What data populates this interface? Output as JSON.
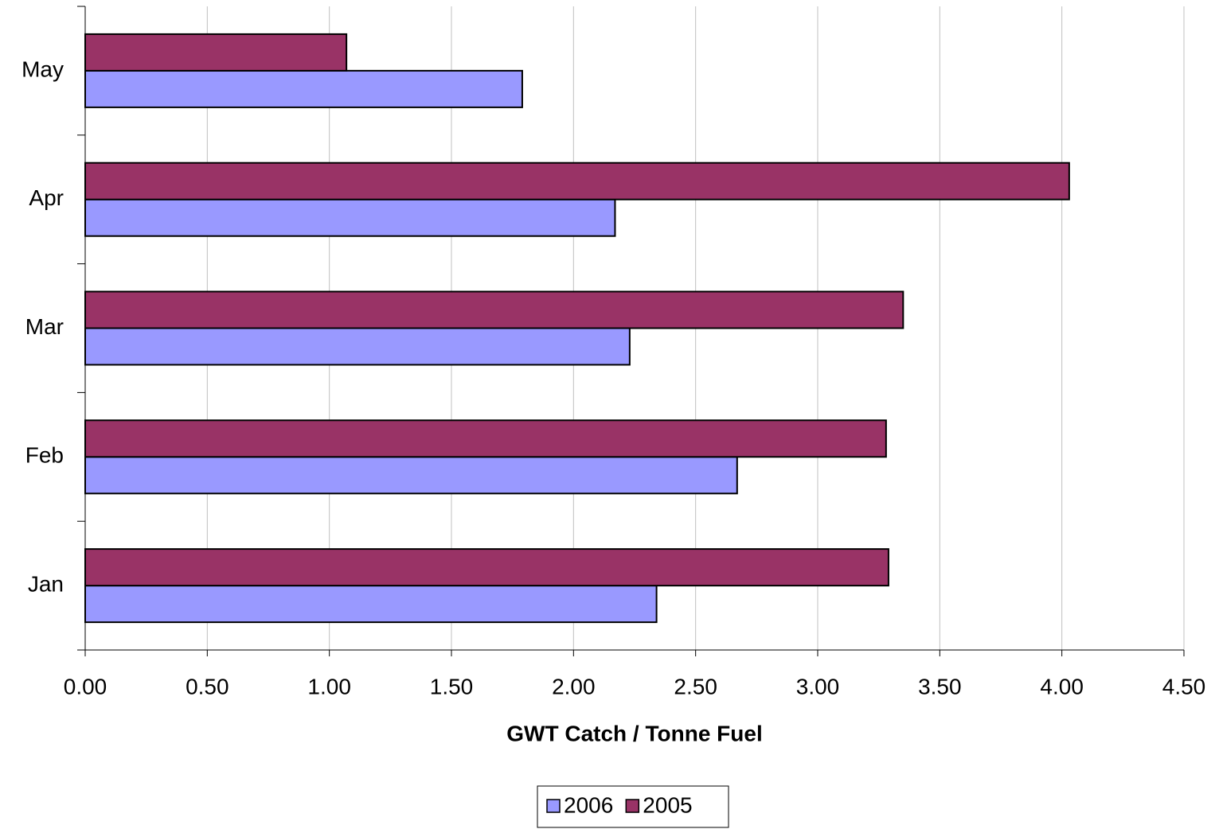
{
  "chart_data": {
    "type": "bar",
    "orientation": "horizontal",
    "xlabel": "GWT Catch / Tonne Fuel",
    "categories": [
      "Jan",
      "Feb",
      "Mar",
      "Apr",
      "May"
    ],
    "series": [
      {
        "name": "2006",
        "color": "#9999ff",
        "values": [
          2.34,
          2.67,
          2.23,
          2.17,
          1.79
        ]
      },
      {
        "name": "2005",
        "color": "#993366",
        "values": [
          3.29,
          3.28,
          3.35,
          4.03,
          1.07
        ]
      }
    ],
    "xlim": [
      0,
      4.5
    ],
    "xticks": [
      {
        "value": 0,
        "label": "0.00"
      },
      {
        "value": 0.5,
        "label": "0.50"
      },
      {
        "value": 1,
        "label": "1.00"
      },
      {
        "value": 1.5,
        "label": "1.50"
      },
      {
        "value": 2,
        "label": "2.00"
      },
      {
        "value": 2.5,
        "label": "2.50"
      },
      {
        "value": 3,
        "label": "3.00"
      },
      {
        "value": 3.5,
        "label": "3.50"
      },
      {
        "value": 4,
        "label": "4.00"
      },
      {
        "value": 4.5,
        "label": "4.50"
      }
    ],
    "grid": true,
    "legend": "bottom"
  }
}
